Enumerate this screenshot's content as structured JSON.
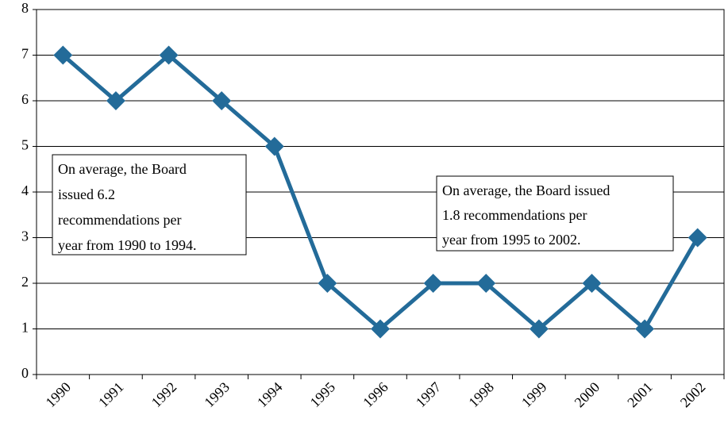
{
  "chart_data": {
    "type": "line",
    "categories": [
      "1990",
      "1991",
      "1992",
      "1993",
      "1994",
      "1995",
      "1996",
      "1997",
      "1998",
      "1999",
      "2000",
      "2001",
      "2002"
    ],
    "values": [
      7,
      6,
      7,
      6,
      5,
      2,
      1,
      2,
      2,
      1,
      2,
      1,
      3
    ],
    "color": "#236b99",
    "ylim": [
      0,
      8
    ],
    "yticks": [
      0,
      1,
      2,
      3,
      4,
      5,
      6,
      7,
      8
    ],
    "grid": true,
    "annotations": [
      {
        "lines": [
          "On average, the Board",
          "issued 6.2",
          "recommendations per",
          "year from 1990 to 1994."
        ]
      },
      {
        "lines": [
          "On average, the Board issued",
          "1.8 recommendations per",
          "year from 1995 to 2002."
        ]
      }
    ]
  }
}
